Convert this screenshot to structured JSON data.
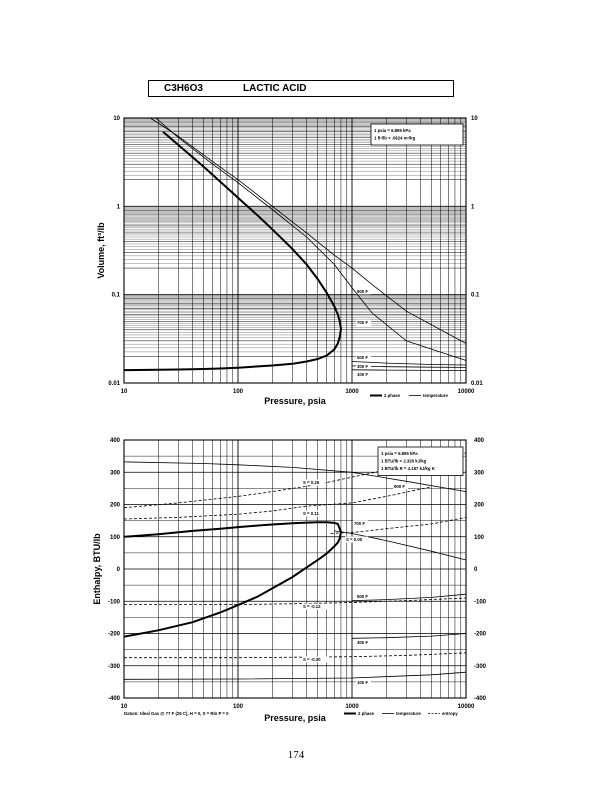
{
  "header": {
    "formula": "C3H6O3",
    "name": "LACTIC ACID"
  },
  "page_number": "174",
  "chart_data": [
    {
      "type": "line",
      "xscale": "log",
      "yscale": "log",
      "xlim": [
        10,
        10000
      ],
      "ylim": [
        0.01,
        10
      ],
      "xticks": [
        "10",
        "100",
        "1000",
        "10000"
      ],
      "yticks_left": [
        "0.01",
        "0,1",
        "1",
        "10"
      ],
      "yticks_right": [
        "0.01",
        "0.1",
        "1",
        "10"
      ],
      "xlabel": "Pressure,  psia",
      "ylabel": "Volume, ft^3/lb",
      "grid": true,
      "legend_box": [
        "1 psia  =  6.895 kPa",
        "1 ft^3/lb  =  .0624 m^3/kg"
      ],
      "legend": [
        {
          "style": "thick",
          "label": "2 phase"
        },
        {
          "style": "thin",
          "label": "temperature"
        }
      ],
      "series": [
        {
          "kind": "2 phase",
          "x": [
            22,
            32,
            50,
            70,
            100,
            150,
            200,
            300,
            400,
            500,
            600,
            700,
            750,
            780,
            800,
            780,
            750,
            700,
            600,
            500,
            400,
            300,
            200,
            150,
            100,
            70,
            50,
            30,
            20,
            10
          ],
          "y": [
            7.0,
            4.6,
            2.8,
            1.9,
            1.25,
            0.78,
            0.55,
            0.33,
            0.22,
            0.15,
            0.105,
            0.074,
            0.06,
            0.05,
            0.041,
            0.033,
            0.028,
            0.024,
            0.0205,
            0.0187,
            0.0175,
            0.0165,
            0.0158,
            0.0154,
            0.0149,
            0.0146,
            0.0144,
            0.0142,
            0.0141,
            0.014
          ]
        },
        {
          "kind": "temperature",
          "label": "900 F",
          "x": [
            17,
            30,
            60,
            100,
            200,
            400,
            700,
            1000,
            1500,
            3000,
            10000
          ],
          "y": [
            10,
            6.2,
            3.2,
            2.0,
            1.0,
            0.5,
            0.28,
            0.2,
            0.13,
            0.065,
            0.028
          ]
        },
        {
          "kind": "temperature",
          "label": "700 F",
          "x": [
            19,
            30,
            60,
            100,
            200,
            400,
            700,
            1000,
            1500,
            3000,
            10000
          ],
          "y": [
            10,
            6.0,
            3.0,
            1.85,
            0.92,
            0.45,
            0.22,
            0.12,
            0.062,
            0.03,
            0.018
          ]
        },
        {
          "kind": "temperature",
          "label": "500 F",
          "x": [
            1000,
            2000,
            5000,
            10000
          ],
          "y": [
            0.0175,
            0.0168,
            0.0162,
            0.016
          ]
        },
        {
          "kind": "temperature",
          "label": "300 F",
          "x": [
            1000,
            2000,
            5000,
            10000
          ],
          "y": [
            0.0156,
            0.0153,
            0.0151,
            0.015
          ]
        },
        {
          "kind": "temperature",
          "label": "100 F",
          "x": [
            1000,
            2000,
            5000,
            10000
          ],
          "y": [
            0.0141,
            0.014,
            0.0139,
            0.0138
          ]
        }
      ]
    },
    {
      "type": "line",
      "xscale": "log",
      "xlim": [
        10,
        10000
      ],
      "ylim": [
        -400,
        400
      ],
      "xticks": [
        "10",
        "100",
        "1000",
        "10000"
      ],
      "yticks": [
        "-400",
        "-300",
        "-200",
        "-100",
        "0",
        "100",
        "200",
        "300",
        "400"
      ],
      "xlabel": "Pressure,  psia",
      "ylabel": "Enthalpy, BTU/lb",
      "grid": true,
      "legend_box": [
        "1 psia  =  6.895 kPa",
        "1 BTU/lb  =  2.326 kJ/kg",
        "1 BTU/lb R  =  4.187 kJ/kg K"
      ],
      "legend": [
        {
          "style": "thick",
          "label": "2 phase"
        },
        {
          "style": "thin",
          "label": "temperature"
        },
        {
          "style": "dashed",
          "label": "entropy"
        }
      ],
      "footnote": "Datum: Ideal Gas @ 77 F (25 C),  H = 0,  S = Rln P = 0",
      "series": [
        {
          "kind": "2 phase",
          "x": [
            10,
            20,
            40,
            70,
            100,
            150,
            200,
            300,
            400,
            500,
            600,
            700,
            750,
            800,
            780,
            750,
            700,
            600,
            500,
            400,
            300,
            200,
            150,
            100,
            70,
            40,
            20,
            10
          ],
          "y": [
            100,
            108,
            118,
            125,
            130,
            135,
            138,
            142,
            144,
            145,
            145,
            143,
            140,
            115,
            95,
            82,
            70,
            48,
            28,
            5,
            -25,
            -60,
            -85,
            -112,
            -135,
            -165,
            -190,
            -210
          ]
        },
        {
          "kind": "temperature",
          "label": "900 F",
          "x": [
            10,
            50,
            100,
            300,
            1000,
            3000,
            10000
          ],
          "y": [
            332,
            327,
            323,
            315,
            300,
            272,
            240
          ]
        },
        {
          "kind": "temperature",
          "label": "700 F",
          "x": [
            700,
            1000,
            2000,
            5000,
            10000
          ],
          "y": [
            118,
            110,
            88,
            55,
            28
          ]
        },
        {
          "kind": "temperature",
          "label": "500 F",
          "x": [
            1000,
            2000,
            5000,
            10000
          ],
          "y": [
            -98,
            -95,
            -88,
            -78
          ]
        },
        {
          "kind": "temperature",
          "label": "300 F",
          "x": [
            1000,
            2000,
            5000,
            10000
          ],
          "y": [
            -215,
            -213,
            -208,
            -200
          ]
        },
        {
          "kind": "temperature",
          "label": "100 F",
          "x": [
            10,
            100,
            1000,
            5000,
            10000
          ],
          "y": [
            -342,
            -341,
            -338,
            -328,
            -320
          ]
        },
        {
          "kind": "entropy",
          "label": "S = 0.25",
          "x": [
            10,
            30,
            100,
            200,
            500,
            1000,
            3000,
            10000
          ],
          "y": [
            190,
            205,
            225,
            240,
            262,
            285,
            320,
            360
          ]
        },
        {
          "kind": "entropy",
          "label": "S = 0.11",
          "x": [
            10,
            30,
            100,
            200,
            400,
            1000,
            2000,
            5000
          ],
          "y": [
            155,
            160,
            170,
            180,
            195,
            205,
            225,
            255
          ]
        },
        {
          "kind": "entropy",
          "label": "S = 0.00",
          "x": [
            650,
            800,
            1000,
            2000,
            5000,
            10000
          ],
          "y": [
            110,
            112,
            113,
            125,
            140,
            160
          ]
        },
        {
          "kind": "entropy",
          "label": "S = -0.12",
          "x": [
            10,
            100,
            300,
            1000,
            3000,
            10000
          ],
          "y": [
            -110,
            -110,
            -108,
            -104,
            -98,
            -90
          ]
        },
        {
          "kind": "entropy",
          "label": "S = -0.30",
          "x": [
            10,
            100,
            200,
            1000,
            3000,
            10000
          ],
          "y": [
            -275,
            -275,
            -274,
            -272,
            -268,
            -260
          ]
        }
      ]
    }
  ]
}
